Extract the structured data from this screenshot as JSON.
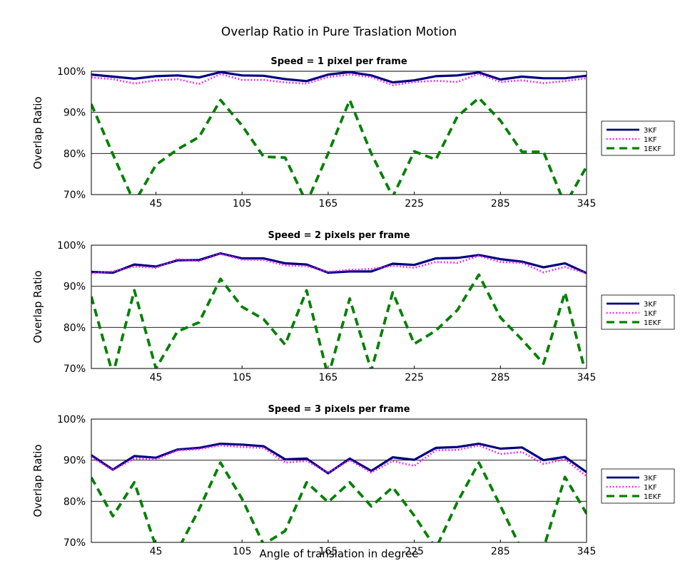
{
  "figure": {
    "title": "Overlap Ratio in Pure Traslation Motion",
    "xlabel": "Angle of translation in degree"
  },
  "colors": {
    "3KF": "#000080",
    "1KF": "#ff00ff",
    "1EKF": "#008000",
    "grid": "#000000"
  },
  "chart_data": [
    {
      "type": "line",
      "title": "Speed = 1 pixel per frame",
      "xlabel": "",
      "ylabel": "Overlap Ratio",
      "x": [
        0,
        15,
        30,
        45,
        60,
        75,
        90,
        105,
        120,
        135,
        150,
        165,
        180,
        195,
        210,
        225,
        240,
        255,
        270,
        285,
        300,
        315,
        330,
        345
      ],
      "xlim": [
        0,
        345
      ],
      "ylim": [
        70,
        100
      ],
      "x_ticks": [
        "45",
        "105",
        "165",
        "225",
        "285",
        "345"
      ],
      "y_ticks": [
        "70%",
        "80%",
        "90%",
        "100%"
      ],
      "grid": "horizontal",
      "legend": "right",
      "series": [
        {
          "name": "3KF",
          "style": "solid",
          "values": [
            99.2,
            98.7,
            98.2,
            98.8,
            99.0,
            98.5,
            99.8,
            99.0,
            98.9,
            98.1,
            97.6,
            99.2,
            99.8,
            99.0,
            97.3,
            97.8,
            98.8,
            99.0,
            99.7,
            98.0,
            98.7,
            98.3,
            98.3,
            98.9
          ]
        },
        {
          "name": "1KF",
          "style": "dotted",
          "values": [
            98.5,
            98.1,
            97.0,
            97.8,
            98.1,
            96.9,
            99.3,
            97.9,
            97.9,
            97.3,
            97.0,
            98.6,
            99.2,
            98.6,
            96.6,
            97.4,
            97.7,
            97.4,
            99.4,
            97.4,
            97.8,
            97.1,
            97.6,
            98.3
          ]
        },
        {
          "name": "1EKF",
          "style": "dashed",
          "values": [
            92.0,
            79.8,
            68.0,
            77.2,
            81.0,
            84.0,
            93.0,
            86.8,
            79.2,
            79.0,
            68.0,
            80.0,
            93.0,
            80.0,
            69.5,
            80.5,
            78.5,
            89.0,
            93.5,
            88.0,
            80.4,
            80.4,
            67.5,
            76.8
          ]
        }
      ]
    },
    {
      "type": "line",
      "title": "Speed = 2 pixels per frame",
      "xlabel": "",
      "ylabel": "Overlap Ratio",
      "x": [
        0,
        15,
        30,
        45,
        60,
        75,
        90,
        105,
        120,
        135,
        150,
        165,
        180,
        195,
        210,
        225,
        240,
        255,
        270,
        285,
        300,
        315,
        330,
        345
      ],
      "xlim": [
        0,
        345
      ],
      "ylim": [
        70,
        100
      ],
      "x_ticks": [
        "45",
        "105",
        "165",
        "225",
        "285",
        "345"
      ],
      "y_ticks": [
        "70%",
        "80%",
        "90%",
        "100%"
      ],
      "grid": "horizontal",
      "legend": "right",
      "series": [
        {
          "name": "3KF",
          "style": "solid",
          "values": [
            93.5,
            93.3,
            95.3,
            94.8,
            96.3,
            96.4,
            98.0,
            96.8,
            96.8,
            95.6,
            95.3,
            93.3,
            93.6,
            93.6,
            95.5,
            95.2,
            96.8,
            96.9,
            97.6,
            96.6,
            96.0,
            94.6,
            95.6,
            93.2
          ]
        },
        {
          "name": "1KF",
          "style": "dotted",
          "values": [
            93.2,
            93.6,
            94.8,
            94.5,
            96.6,
            96.1,
            97.9,
            96.5,
            96.4,
            95.1,
            94.9,
            93.5,
            94.0,
            94.2,
            95.0,
            94.5,
            95.9,
            95.7,
            97.4,
            95.9,
            95.7,
            93.4,
            94.7,
            93.2
          ]
        },
        {
          "name": "1EKF",
          "style": "dashed",
          "values": [
            87.5,
            68.5,
            89.0,
            70.0,
            79.0,
            81.2,
            91.8,
            85.0,
            82.0,
            75.8,
            89.0,
            68.0,
            87.0,
            69.5,
            88.5,
            76.0,
            79.2,
            84.2,
            92.8,
            82.4,
            77.0,
            71.2,
            88.5,
            68.0
          ]
        }
      ]
    },
    {
      "type": "line",
      "title": "Speed = 3 pixels per frame",
      "xlabel": "Angle of translation in degree",
      "ylabel": "Overlap Ratio",
      "x": [
        0,
        15,
        30,
        45,
        60,
        75,
        90,
        105,
        120,
        135,
        150,
        165,
        180,
        195,
        210,
        225,
        240,
        255,
        270,
        285,
        300,
        315,
        330,
        345
      ],
      "xlim": [
        0,
        345
      ],
      "ylim": [
        70,
        100
      ],
      "x_ticks": [
        "45",
        "105",
        "165",
        "225",
        "285",
        "345"
      ],
      "y_ticks": [
        "70%",
        "80%",
        "90%",
        "100%"
      ],
      "grid": "horizontal",
      "legend": "right",
      "series": [
        {
          "name": "3KF",
          "style": "solid",
          "values": [
            91.2,
            87.7,
            91.0,
            90.6,
            92.6,
            93.0,
            94.0,
            93.8,
            93.4,
            90.2,
            90.4,
            86.8,
            90.4,
            87.4,
            90.7,
            90.1,
            93.0,
            93.2,
            94.0,
            92.8,
            93.1,
            90.0,
            90.8,
            87.1
          ]
        },
        {
          "name": "1KF",
          "style": "dotted",
          "values": [
            90.8,
            87.6,
            90.4,
            90.2,
            92.4,
            92.7,
            93.6,
            93.2,
            93.0,
            89.4,
            89.8,
            87.0,
            90.0,
            87.0,
            89.8,
            88.6,
            92.4,
            92.5,
            93.6,
            91.5,
            92.0,
            89.1,
            90.2,
            86.1
          ]
        },
        {
          "name": "1EKF",
          "style": "dashed",
          "values": [
            85.8,
            76.4,
            84.6,
            69.0,
            68.0,
            78.0,
            89.4,
            80.6,
            69.5,
            72.8,
            84.6,
            79.8,
            84.6,
            78.8,
            83.4,
            76.5,
            68.5,
            79.8,
            89.4,
            78.9,
            68.0,
            68.5,
            85.9,
            77.0
          ]
        }
      ]
    }
  ]
}
